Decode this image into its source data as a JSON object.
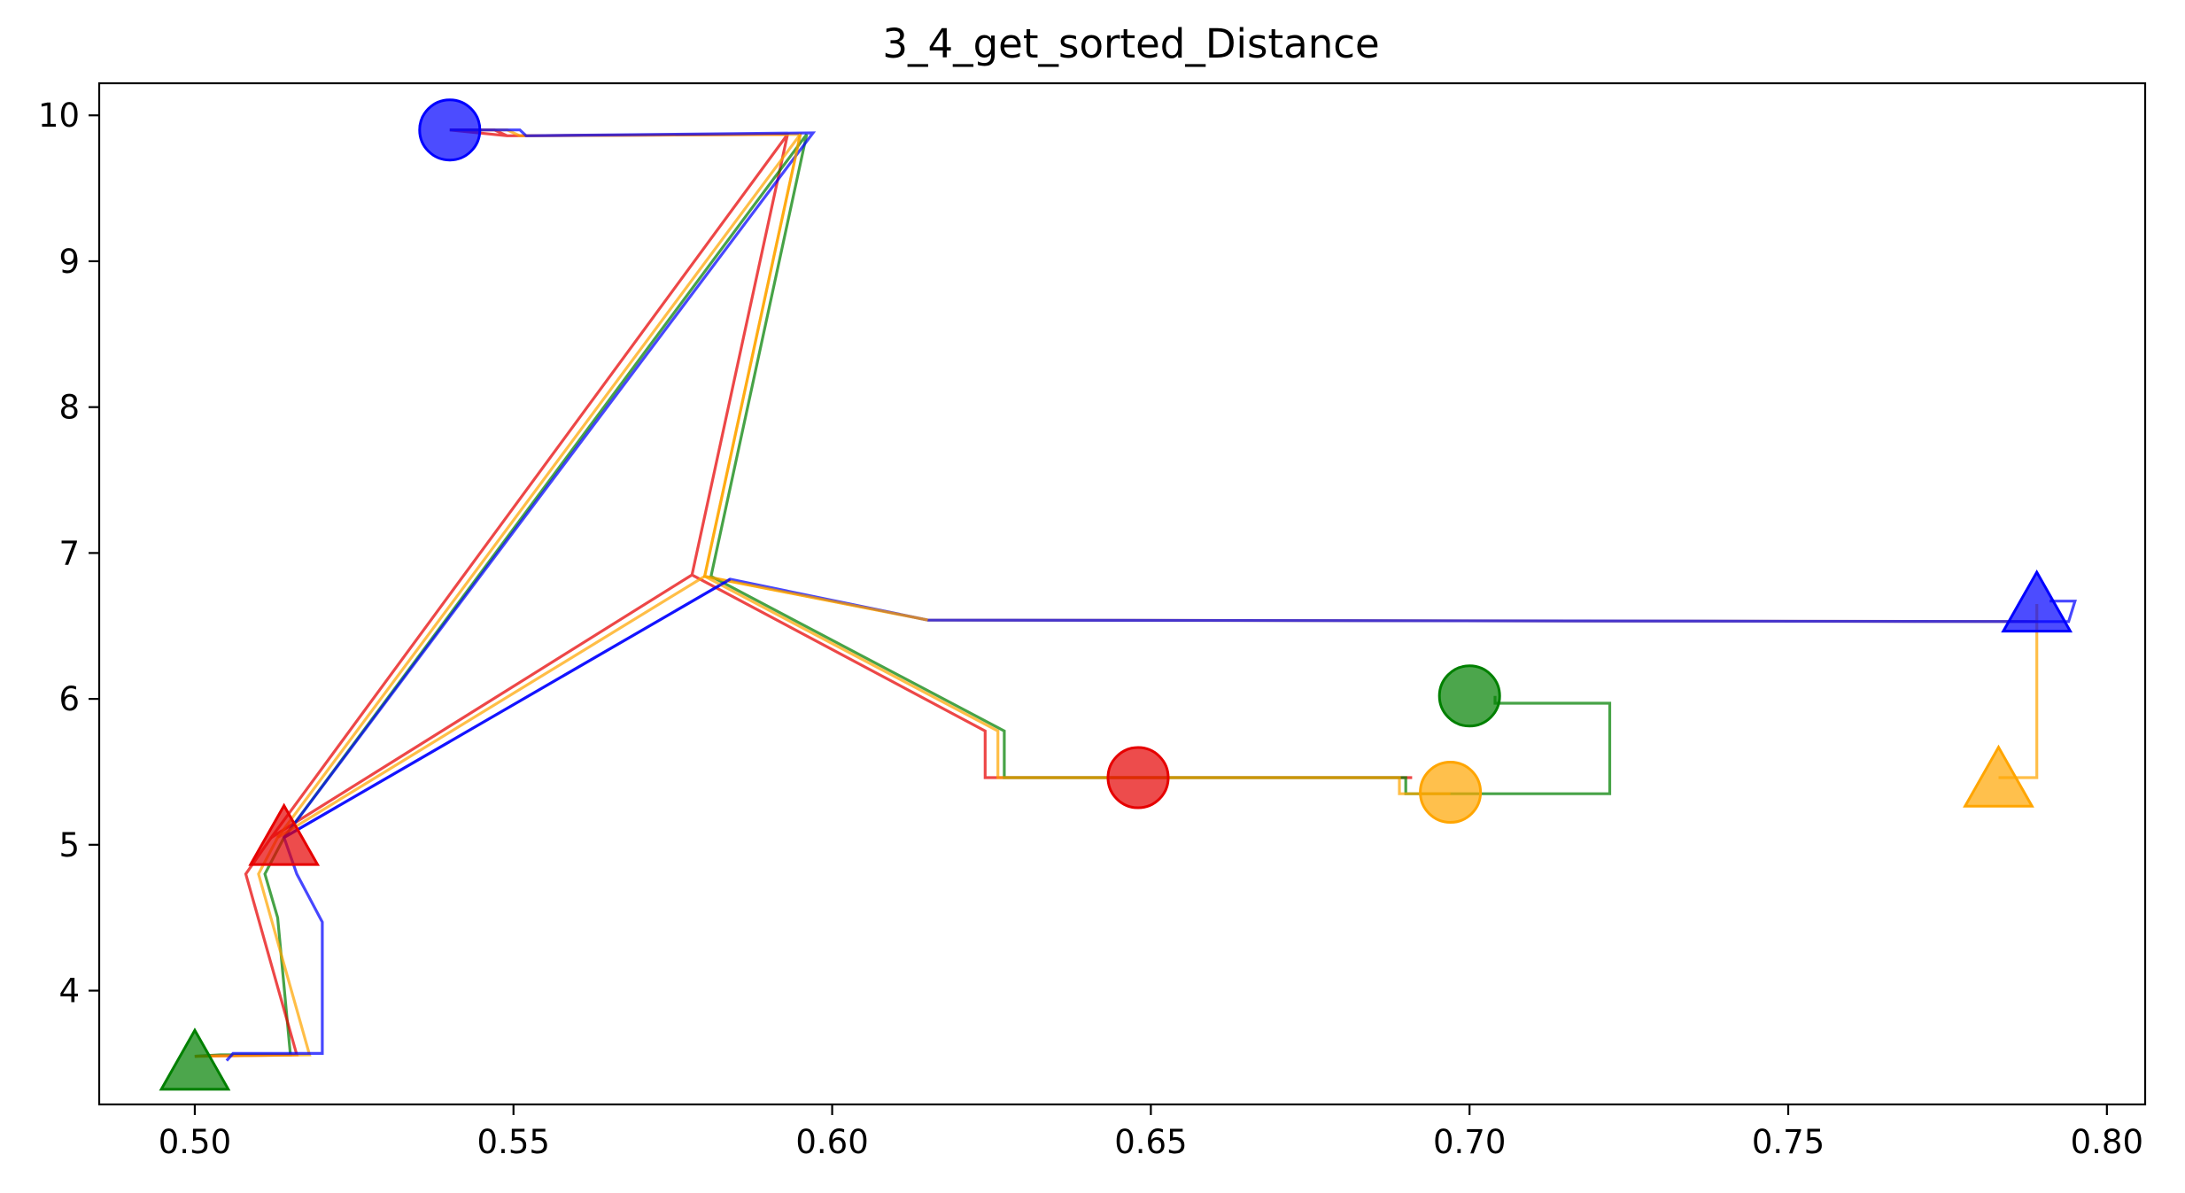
{
  "chart_data": {
    "type": "line",
    "title": "3_4_get_sorted_Distance",
    "xlabel": "",
    "ylabel": "",
    "xlim": [
      0.485,
      0.806
    ],
    "ylim": [
      3.22,
      10.22
    ],
    "grid": false,
    "x_ticks": [
      0.5,
      0.55,
      0.6,
      0.65,
      0.7,
      0.75,
      0.8
    ],
    "x_tick_labels": [
      "0.50",
      "0.55",
      "0.60",
      "0.65",
      "0.70",
      "0.75",
      "0.80"
    ],
    "y_ticks": [
      4,
      5,
      6,
      7,
      8,
      9,
      10
    ],
    "y_tick_labels": [
      "4",
      "5",
      "6",
      "7",
      "8",
      "9",
      "10"
    ],
    "series": [
      {
        "color": "#e60000",
        "points": [
          [
            0.54,
            9.9
          ],
          [
            0.547,
            9.9
          ],
          [
            0.549,
            9.86
          ],
          [
            0.593,
            9.87
          ],
          [
            0.578,
            6.85
          ],
          [
            0.624,
            5.78
          ],
          [
            0.624,
            5.46
          ],
          [
            0.691,
            5.46
          ],
          [
            0.691,
            5.46
          ],
          [
            0.691,
            5.46
          ],
          [
            0.648,
            5.46
          ],
          [
            0.624,
            5.46
          ],
          [
            0.624,
            5.78
          ],
          [
            0.578,
            6.85
          ],
          [
            0.512,
            5.05
          ],
          [
            0.593,
            9.87
          ],
          [
            0.549,
            9.86
          ],
          [
            0.54,
            9.9
          ]
        ]
      },
      {
        "color": "#ffa500",
        "points": [
          [
            0.54,
            9.9
          ],
          [
            0.549,
            9.9
          ],
          [
            0.551,
            9.86
          ],
          [
            0.595,
            9.87
          ],
          [
            0.58,
            6.84
          ],
          [
            0.615,
            6.54
          ],
          [
            0.789,
            6.53
          ],
          [
            0.789,
            6.65
          ],
          [
            0.789,
            5.46
          ],
          [
            0.783,
            5.46
          ]
        ]
      },
      {
        "color": "#008000",
        "points": [
          [
            0.5,
            3.55
          ],
          [
            0.504,
            3.56
          ],
          [
            0.515,
            3.56
          ],
          [
            0.513,
            4.5
          ],
          [
            0.511,
            4.8
          ],
          [
            0.514,
            5.05
          ],
          [
            0.596,
            9.87
          ],
          [
            0.581,
            6.84
          ],
          [
            0.627,
            5.78
          ],
          [
            0.627,
            5.46
          ],
          [
            0.69,
            5.46
          ],
          [
            0.69,
            5.35
          ],
          [
            0.722,
            5.35
          ],
          [
            0.722,
            5.97
          ],
          [
            0.704,
            5.97
          ],
          [
            0.704,
            6.02
          ]
        ]
      },
      {
        "color": "#0000ff",
        "points": [
          [
            0.54,
            9.9
          ],
          [
            0.551,
            9.9
          ],
          [
            0.552,
            9.86
          ],
          [
            0.597,
            9.88
          ],
          [
            0.514,
            5.05
          ],
          [
            0.584,
            6.82
          ],
          [
            0.615,
            6.54
          ],
          [
            0.789,
            6.53
          ],
          [
            0.794,
            6.53
          ],
          [
            0.795,
            6.67
          ],
          [
            0.791,
            6.67
          ]
        ]
      },
      {
        "color": "#e60000",
        "points": [
          [
            0.5,
            3.55
          ],
          [
            0.516,
            3.56
          ],
          [
            0.508,
            4.8
          ],
          [
            0.512,
            5.05
          ]
        ]
      },
      {
        "color": "#ffa500",
        "points": [
          [
            0.5,
            3.55
          ],
          [
            0.518,
            3.56
          ],
          [
            0.51,
            4.8
          ],
          [
            0.513,
            5.05
          ],
          [
            0.58,
            6.84
          ],
          [
            0.615,
            6.54
          ]
        ]
      },
      {
        "color": "#ffa500",
        "points": [
          [
            0.595,
            9.87
          ],
          [
            0.58,
            6.84
          ],
          [
            0.626,
            5.78
          ],
          [
            0.626,
            5.46
          ],
          [
            0.689,
            5.46
          ],
          [
            0.689,
            5.35
          ],
          [
            0.697,
            5.35
          ]
        ]
      },
      {
        "color": "#ffa500",
        "points": [
          [
            0.513,
            5.05
          ],
          [
            0.595,
            9.87
          ]
        ]
      },
      {
        "color": "#0000ff",
        "points": [
          [
            0.505,
            3.52
          ],
          [
            0.506,
            3.57
          ],
          [
            0.52,
            3.57
          ],
          [
            0.52,
            4.47
          ],
          [
            0.516,
            4.8
          ],
          [
            0.514,
            5.05
          ],
          [
            0.584,
            6.82
          ]
        ]
      }
    ],
    "markers": [
      {
        "shape": "circle",
        "color": "#0000ff",
        "x": 0.54,
        "y": 9.9
      },
      {
        "shape": "circle",
        "color": "#e60000",
        "x": 0.648,
        "y": 5.46
      },
      {
        "shape": "circle",
        "color": "#008000",
        "x": 0.7,
        "y": 6.02
      },
      {
        "shape": "circle",
        "color": "#ffa500",
        "x": 0.697,
        "y": 5.36
      },
      {
        "shape": "triangle",
        "color": "#e60000",
        "x": 0.514,
        "y": 5.05
      },
      {
        "shape": "triangle",
        "color": "#008000",
        "x": 0.5,
        "y": 3.51
      },
      {
        "shape": "triangle",
        "color": "#0000ff",
        "x": 0.789,
        "y": 6.65
      },
      {
        "shape": "triangle",
        "color": "#ffa500",
        "x": 0.783,
        "y": 5.45
      }
    ]
  }
}
